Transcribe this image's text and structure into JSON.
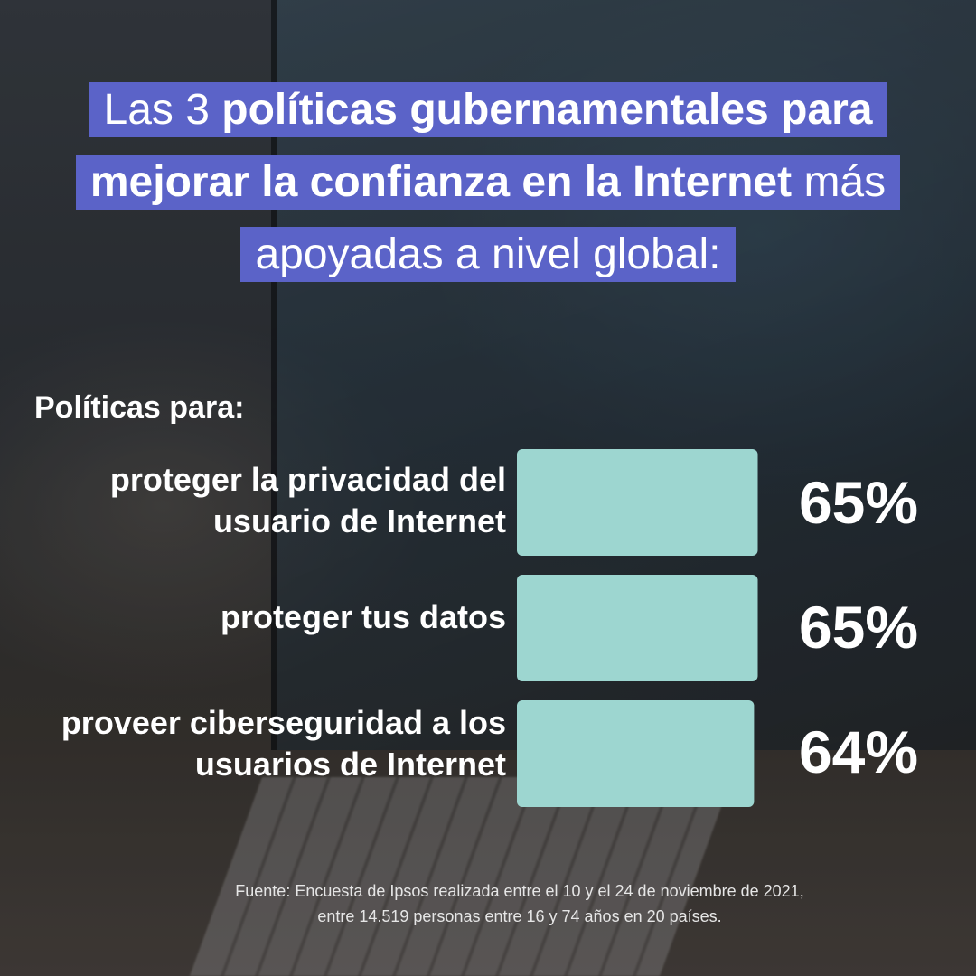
{
  "title": {
    "parts": [
      {
        "text": "Las 3 ",
        "bold": false
      },
      {
        "text": "políticas gubernamentales para mejorar la confianza en la Internet",
        "bold": true
      },
      {
        "text": " más apoyadas a nivel global:",
        "bold": false
      }
    ]
  },
  "subtitle": "Políticas para:",
  "chart_data": {
    "type": "bar",
    "orientation": "horizontal",
    "categories": [
      "proteger la privacidad del usuario de Internet",
      "proteger tus datos",
      "proveer ciberseguridad a los usuarios de Internet"
    ],
    "values": [
      65,
      65,
      64
    ],
    "value_labels": [
      "65%",
      "65%",
      "64%"
    ],
    "bar_color": "#9dd6d0",
    "xlim": [
      0,
      100
    ],
    "grid": false
  },
  "source": {
    "line1": "Fuente: Encuesta de Ipsos realizada entre el 10 y el 24 de noviembre de 2021,",
    "line2": "entre 14.519 personas entre 16 y 74 años en 20 países."
  },
  "colors": {
    "title_bg": "#5b63c8",
    "text": "#ffffff"
  }
}
